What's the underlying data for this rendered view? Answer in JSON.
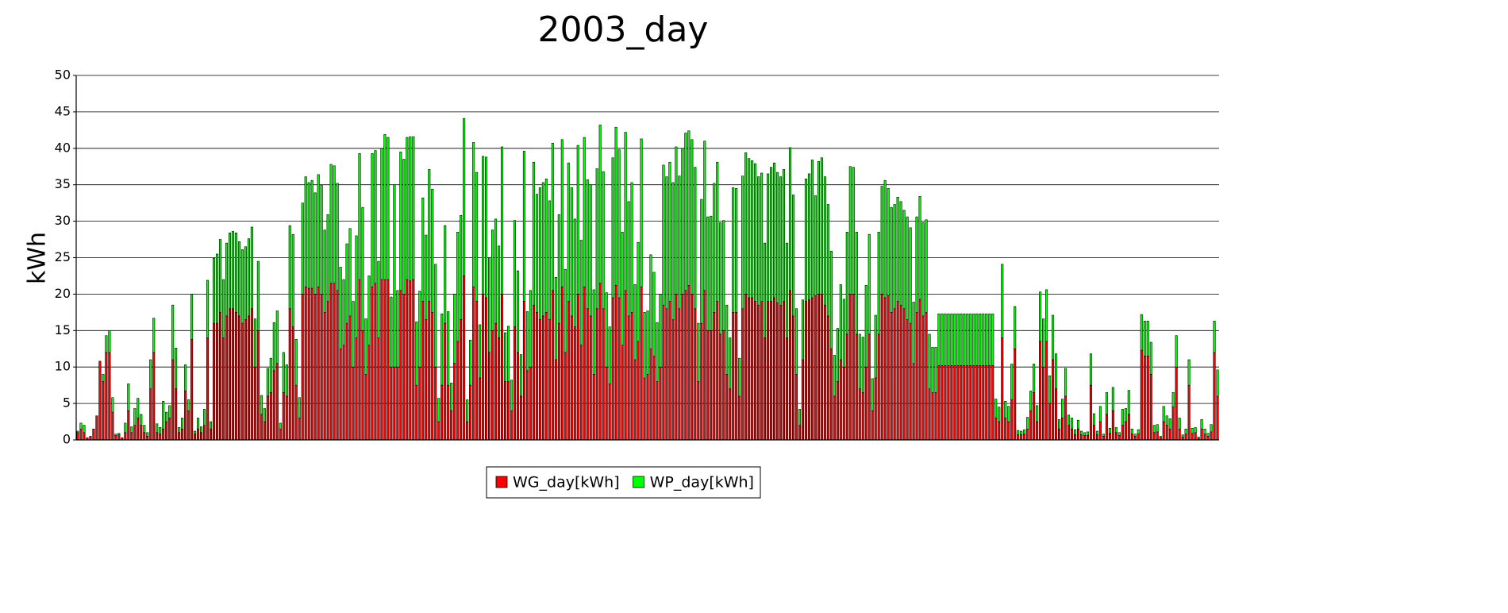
{
  "chart_data": {
    "type": "bar",
    "stacked": true,
    "title": "2003_day",
    "y_label": "kWh",
    "ylim": [
      0,
      50
    ],
    "yticks": [
      0,
      5,
      10,
      15,
      20,
      25,
      30,
      35,
      40,
      45,
      50
    ],
    "grid": true,
    "legend": "bottom",
    "series": [
      {
        "name": "WG_day[kWh]",
        "color": "#ff0000",
        "values": [
          1,
          1.5,
          1,
          0.3,
          0.5,
          1.5,
          3.3,
          10.8,
          8,
          12,
          12,
          3.8,
          0.6,
          0.7,
          0.3,
          1,
          4,
          1,
          2,
          3,
          2,
          1,
          0.5,
          7,
          12,
          1,
          0.8,
          1.5,
          2.5,
          3,
          11,
          7,
          1,
          1.5,
          6.7,
          4,
          13.8,
          0.8,
          1.5,
          1,
          2,
          14,
          1.5,
          16,
          16,
          17.5,
          14,
          17,
          18,
          18,
          17.5,
          17,
          16,
          16.5,
          17,
          18,
          10,
          15,
          3.5,
          2.5,
          6,
          6.5,
          9.5,
          10.5,
          1.5,
          6.5,
          6,
          18,
          15.5,
          7.5,
          3,
          20,
          21,
          20.8,
          20.8,
          20,
          21,
          20,
          17.5,
          19,
          21.5,
          21.5,
          20.5,
          12.5,
          13,
          16,
          17,
          10,
          14,
          22,
          15,
          9,
          13,
          21,
          21.5,
          14,
          22,
          22,
          22,
          10,
          10,
          10,
          20.5,
          20,
          22,
          21.8,
          22,
          7.5,
          10,
          19,
          16.5,
          19,
          17.5,
          10,
          2.5,
          7.5,
          16,
          7.5,
          4,
          10.5,
          13.5,
          16.5,
          22.5,
          2.5,
          7.5,
          21,
          19,
          8.5,
          20,
          19.5,
          12,
          15,
          16,
          14,
          20,
          8,
          8,
          4,
          15.5,
          12,
          6,
          19,
          9.5,
          10,
          18.5,
          17.5,
          16.5,
          17,
          17.5,
          16.5,
          20.5,
          11,
          16,
          21,
          12,
          19,
          17,
          15.5,
          20,
          13,
          21,
          18,
          17,
          9,
          18,
          21.5,
          18,
          10,
          7.7,
          19.5,
          21.2,
          19.5,
          13,
          20.5,
          17,
          17.5,
          11,
          13.5,
          21,
          8.5,
          9,
          12.5,
          11.5,
          8,
          10,
          18.5,
          18,
          19,
          16.5,
          20,
          18,
          20,
          20.5,
          21.2,
          20,
          18,
          8,
          16,
          20.5,
          15,
          15,
          17.5,
          19,
          14.5,
          15,
          9,
          7,
          17.5,
          17.5,
          6,
          18,
          20,
          19.5,
          19.5,
          19,
          18.5,
          19,
          14,
          19,
          19,
          19.5,
          18.8,
          18.5,
          19,
          14,
          20.5,
          17,
          9,
          2,
          11,
          19,
          19.2,
          19.5,
          19.8,
          20,
          20,
          18.5,
          17,
          12.5,
          6,
          8,
          11,
          10,
          14.5,
          20,
          20,
          14.5,
          7,
          6.5,
          10,
          14.5,
          4,
          8.5,
          14.5,
          20,
          19.5,
          19.8,
          17.5,
          18,
          19,
          18.5,
          18,
          16.5,
          16,
          10.5,
          17.5,
          19.3,
          17,
          17.5,
          7,
          6.5,
          6.5,
          10.2,
          10.2,
          10.2,
          10.2,
          10.2,
          10.2,
          10.2,
          10.2,
          10.2,
          10.2,
          10.2,
          10.2,
          10.2,
          10.2,
          10.2,
          10.2,
          10.2,
          10.2,
          3,
          2.5,
          14,
          3,
          2.5,
          5.5,
          12.5,
          0.7,
          0.7,
          0.8,
          1.5,
          4,
          6.5,
          2.5,
          13.5,
          10,
          13.5,
          5,
          11,
          7,
          1.5,
          3,
          6,
          2,
          1.5,
          0.7,
          1.5,
          0.7,
          0.6,
          0.6,
          7.5,
          2,
          0.7,
          2.5,
          0.5,
          3.5,
          0.9,
          4,
          1,
          0.6,
          2,
          2.5,
          3.5,
          0.8,
          0.5,
          0.8,
          12.3,
          11.5,
          11.5,
          9,
          1,
          1.1,
          0.3,
          2.5,
          2,
          1.5,
          4.5,
          10,
          1.5,
          0.4,
          0.8,
          7.5,
          0.9,
          1,
          0.2,
          1.5,
          0.8,
          0.5,
          1.1,
          12,
          6
        ]
      },
      {
        "name": "WP_day[kWh]",
        "color": "#00ff00",
        "values": [
          0.2,
          0.8,
          1,
          0,
          0,
          0,
          0,
          0,
          1,
          2.3,
          3,
          2,
          0.2,
          0.2,
          0,
          1.3,
          3.7,
          0.8,
          2.3,
          2.7,
          1.5,
          1,
          0.5,
          4,
          4.7,
          1.2,
          0.9,
          3.8,
          1.3,
          1.7,
          7.5,
          5.6,
          0.7,
          1.5,
          3.6,
          1.5,
          6.2,
          0.4,
          1.5,
          0.8,
          2.2,
          7.9,
          1,
          8.9,
          9.5,
          10,
          8,
          10,
          10.4,
          10.6,
          10.9,
          10.2,
          10.1,
          10,
          10.6,
          11.2,
          6.6,
          9.5,
          2.6,
          1.8,
          3.8,
          4.7,
          6.6,
          7.2,
          0.8,
          5.5,
          4.3,
          11.4,
          12.7,
          6.3,
          2.8,
          12.5,
          15.1,
          14.5,
          14.8,
          13.9,
          15.4,
          14.9,
          11.3,
          11.9,
          16.3,
          16.1,
          14.7,
          11.2,
          9,
          10.9,
          12,
          9,
          14,
          17.3,
          16.9,
          7.6,
          9.5,
          18.3,
          18.2,
          10.5,
          18,
          19.9,
          19.5,
          9.6,
          25,
          10.5,
          19,
          18.5,
          19.5,
          19.8,
          19.6,
          8.7,
          10.4,
          14.2,
          11.6,
          18.1,
          16.9,
          14.1,
          3.2,
          9.8,
          13.4,
          10.1,
          3.8,
          9.5,
          15,
          14.3,
          21.6,
          3,
          6.2,
          19.8,
          17.7,
          7.3,
          18.9,
          19.3,
          13,
          13.8,
          14.3,
          12.6,
          20.2,
          6.7,
          7.6,
          4.2,
          14.6,
          11.2,
          5.7,
          20.6,
          8.1,
          10.5,
          19.6,
          16.2,
          18.1,
          18.3,
          18.3,
          16.3,
          20.2,
          11.3,
          14.9,
          20.2,
          11.4,
          19,
          17.6,
          14.8,
          20.4,
          14.4,
          20.5,
          17.7,
          18,
          11.6,
          19.2,
          21.7,
          18.8,
          10.2,
          7.8,
          19.2,
          21.7,
          20.3,
          15.5,
          21.7,
          15.7,
          17.8,
          10.3,
          13.6,
          20.3,
          9,
          8.7,
          12.9,
          11.5,
          8.1,
          10,
          19.2,
          18.1,
          19.1,
          18.8,
          20.2,
          18.2,
          20,
          21.6,
          21.2,
          21.2,
          19.4,
          8,
          17,
          20.5,
          15.6,
          15.7,
          17.7,
          19.1,
          15.3,
          15.1,
          9.5,
          7,
          17.1,
          17,
          5.2,
          18.2,
          19.4,
          19.1,
          18.8,
          18.9,
          17.6,
          17.6,
          13,
          17.5,
          18.4,
          18.5,
          17.9,
          17.6,
          18.1,
          13,
          19.6,
          16.6,
          9,
          2.2,
          8.2,
          16.8,
          17.3,
          18.9,
          13.7,
          18.2,
          18.7,
          17.6,
          15.3,
          13.4,
          5.6,
          7.3,
          10.3,
          9.3,
          14,
          17.5,
          17.4,
          14,
          7.5,
          7.6,
          11.2,
          13.7,
          4.4,
          8.6,
          14,
          14.8,
          16.1,
          14.7,
          14.4,
          14.3,
          14.3,
          14.2,
          13.5,
          14.1,
          13.1,
          8.4,
          13.1,
          14.1,
          12.8,
          12.7,
          7.5,
          6.2,
          6.2,
          7.1,
          7.1,
          7.1,
          7.1,
          7.1,
          7.1,
          7.1,
          7.1,
          7.1,
          7.1,
          7.1,
          7.1,
          7.1,
          7.1,
          7.1,
          7.1,
          7.1,
          7.1,
          2.6,
          2,
          10.1,
          2.3,
          2.1,
          4.9,
          5.8,
          0.6,
          0.5,
          0.6,
          1.6,
          2.7,
          3.9,
          2.2,
          6.8,
          6.6,
          7.1,
          3.8,
          6.1,
          4.8,
          1.3,
          2.6,
          3.8,
          1.4,
          1.5,
          0.7,
          1.2,
          0.5,
          0.4,
          0.5,
          4.3,
          1.6,
          0.5,
          2.1,
          0.3,
          3,
          0.7,
          3.2,
          0.7,
          0.4,
          2.2,
          1.8,
          3.3,
          0.7,
          0.3,
          0.6,
          4.9,
          4.8,
          4.8,
          4.4,
          1,
          1,
          0.2,
          2.1,
          1.3,
          1.4,
          2,
          4.3,
          1.5,
          0.3,
          0.7,
          3.5,
          0.7,
          0.7,
          0.2,
          1.3,
          0.7,
          0.4,
          1,
          4.3,
          3.6
        ]
      }
    ]
  }
}
